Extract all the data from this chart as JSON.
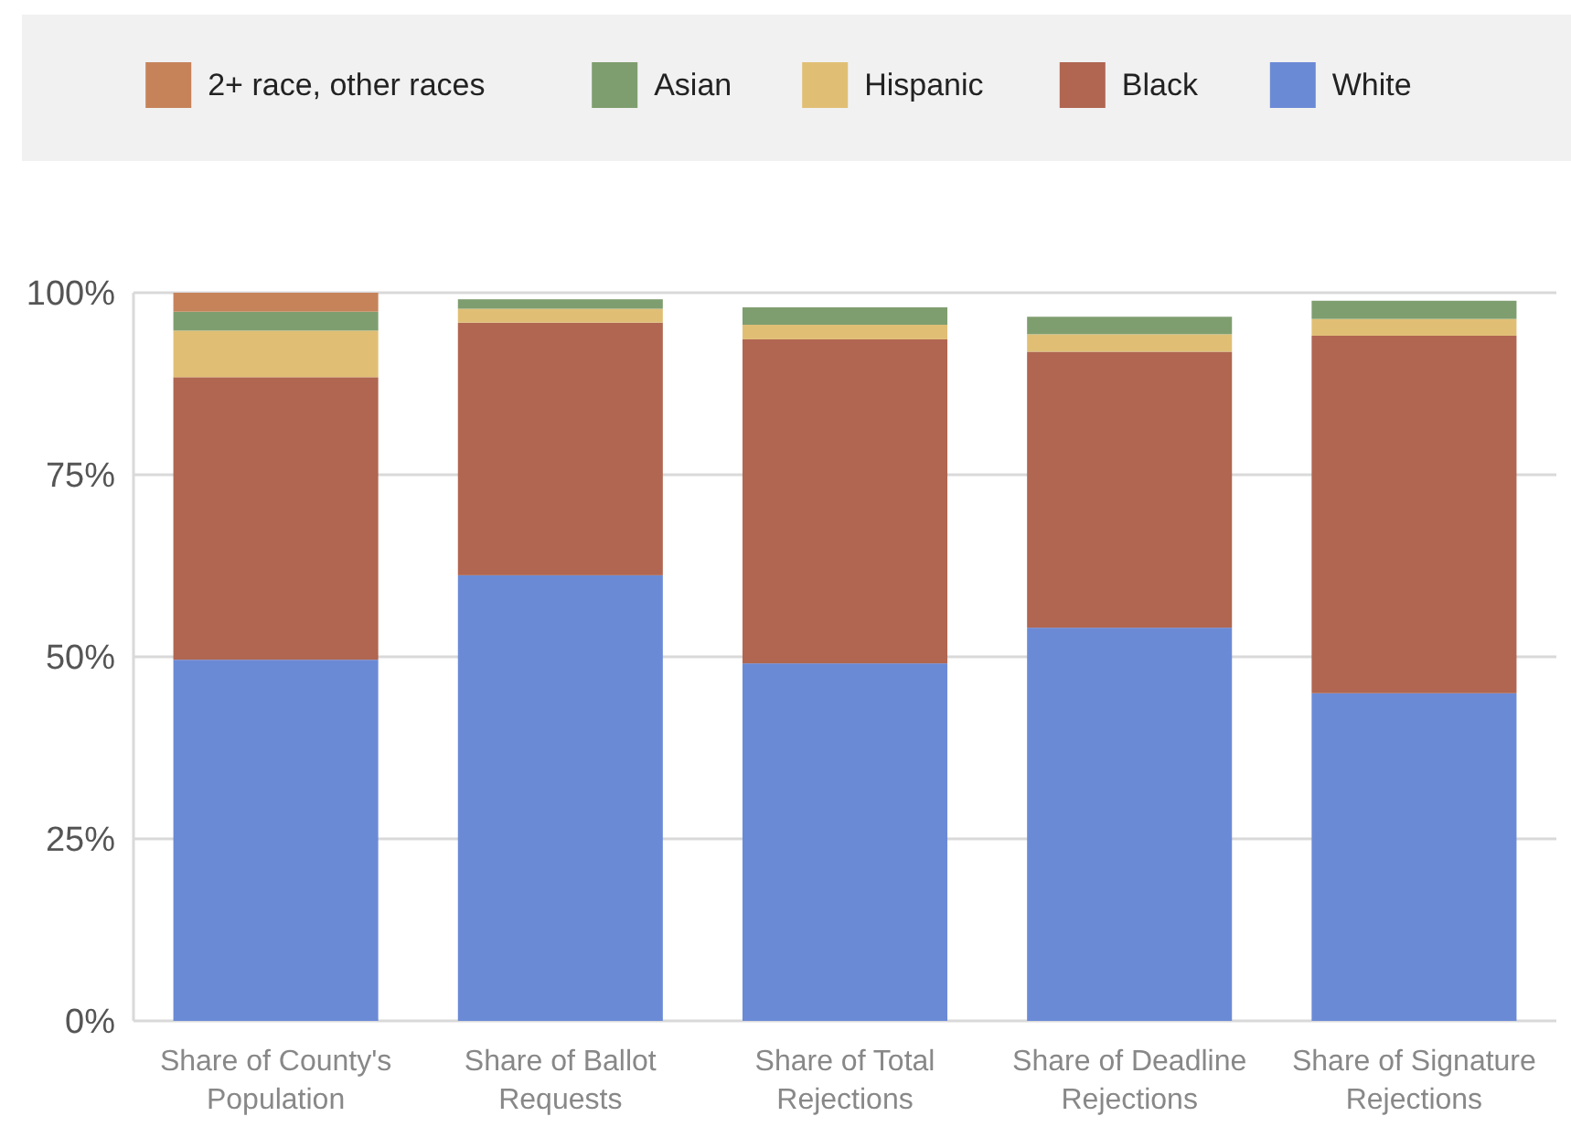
{
  "chart_data": {
    "type": "bar",
    "stacked": true,
    "categories": [
      "Share of County's Population",
      "Share of Ballot Requests",
      "Share of Total Rejections",
      "Share of Deadline Rejections",
      "Share of Signature Rejections"
    ],
    "series": [
      {
        "name": "White",
        "color": "#6b8ad6",
        "values": [
          49.6,
          61.2,
          49.1,
          54.0,
          45.0
        ]
      },
      {
        "name": "Black",
        "color": "#b06651",
        "values": [
          38.8,
          34.7,
          44.5,
          37.9,
          49.1
        ]
      },
      {
        "name": "Hispanic",
        "color": "#e0bf75",
        "values": [
          6.4,
          1.9,
          2.0,
          2.4,
          2.3
        ]
      },
      {
        "name": "Asian",
        "color": "#7f9e6f",
        "values": [
          2.6,
          1.3,
          2.4,
          2.4,
          2.5
        ]
      },
      {
        "name": "2+ race, other races",
        "color": "#c6835a",
        "values": [
          2.6,
          0,
          0,
          0,
          0
        ]
      }
    ],
    "ylim": [
      0,
      100
    ],
    "yticks": [
      {
        "value": 0,
        "label": "0%"
      },
      {
        "value": 25,
        "label": "25%"
      },
      {
        "value": 50,
        "label": "50%"
      },
      {
        "value": 75,
        "label": "75%"
      },
      {
        "value": 100,
        "label": "100%"
      }
    ],
    "grid": "y",
    "legend": "top"
  }
}
